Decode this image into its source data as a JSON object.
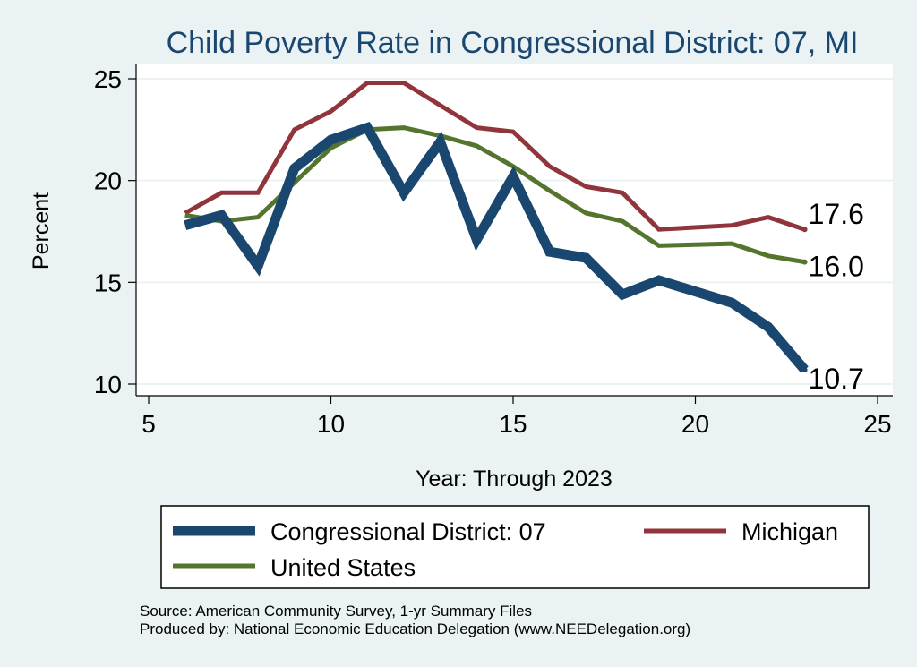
{
  "chart_data": {
    "type": "line",
    "title": "Child Poverty Rate in Congressional District:  07, MI",
    "xlabel": "Year: Through 2023",
    "ylabel": "Percent",
    "xlim": [
      5,
      25
    ],
    "ylim": [
      10,
      25
    ],
    "xticks": [
      "5",
      "10",
      "15",
      "20",
      "25"
    ],
    "yticks": [
      "10",
      "15",
      "20",
      "25"
    ],
    "grid": true,
    "legend_position": "bottom",
    "series": [
      {
        "name": "Congressional District:  07",
        "color": "#1a476f",
        "x": [
          6,
          7,
          8,
          9,
          10,
          11,
          12,
          13,
          14,
          15,
          16,
          17,
          18,
          19,
          21,
          22,
          23
        ],
        "values": [
          17.8,
          18.3,
          15.8,
          20.6,
          22.0,
          22.6,
          19.4,
          21.9,
          17.1,
          20.2,
          16.5,
          16.2,
          14.4,
          15.1,
          14.0,
          12.8,
          10.7
        ],
        "end_label": "10.7"
      },
      {
        "name": "Michigan",
        "color": "#90353b",
        "x": [
          6,
          7,
          8,
          9,
          10,
          11,
          12,
          13,
          14,
          15,
          16,
          17,
          18,
          19,
          21,
          22,
          23
        ],
        "values": [
          18.4,
          19.4,
          19.4,
          22.5,
          23.4,
          24.8,
          24.8,
          23.7,
          22.6,
          22.4,
          20.7,
          19.7,
          19.4,
          17.6,
          17.8,
          18.2,
          17.6
        ],
        "end_label": "17.6"
      },
      {
        "name": "United States",
        "color": "#55752f",
        "x": [
          6,
          7,
          8,
          9,
          10,
          11,
          12,
          13,
          14,
          15,
          16,
          17,
          18,
          19,
          21,
          22,
          23
        ],
        "values": [
          18.3,
          18.0,
          18.2,
          19.9,
          21.6,
          22.5,
          22.6,
          22.2,
          21.7,
          20.7,
          19.5,
          18.4,
          18.0,
          16.8,
          16.9,
          16.3,
          16.0
        ],
        "end_label": "16.0"
      }
    ],
    "source_lines": [
      "Source: American Community Survey, 1-yr Summary Files",
      "Produced by: National Economic Education Delegation (www.NEEDelegation.org)"
    ]
  }
}
